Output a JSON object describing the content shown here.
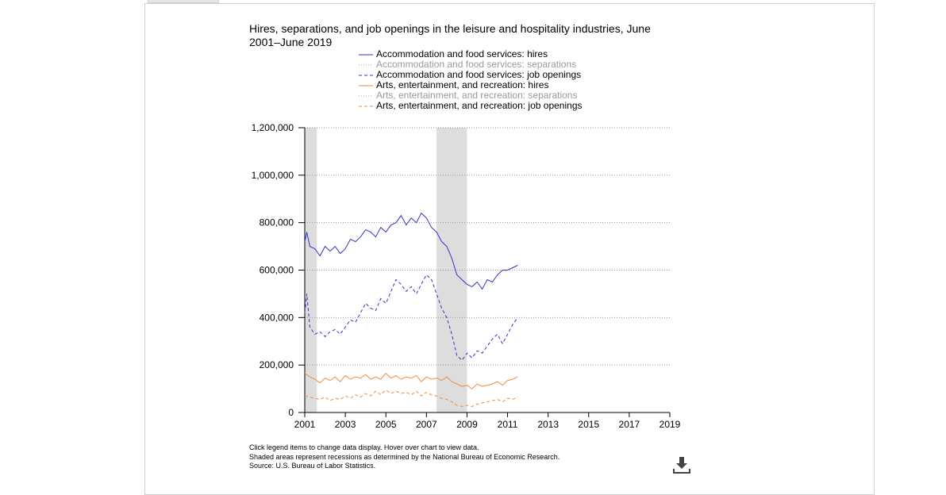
{
  "title": "Hires, separations, and job openings in the leisure and hospitality industries, June 2001–June 2019",
  "legend": [
    {
      "label": "Accommodation and food services: hires",
      "color": "#3333cc",
      "dash": "",
      "active": true
    },
    {
      "label": "Accommodation and food services: separations",
      "color": "#aaaaaa",
      "dash": "1,2",
      "active": false
    },
    {
      "label": "Accommodation and food services: job openings",
      "color": "#3333cc",
      "dash": "4,3",
      "active": true
    },
    {
      "label": "Arts, entertainment, and recreation: hires",
      "color": "#f28a40",
      "dash": "",
      "active": true
    },
    {
      "label": "Arts, entertainment, and recreation: separations",
      "color": "#aaaaaa",
      "dash": "1,2",
      "active": false
    },
    {
      "label": "Arts, entertainment, and recreation: job openings",
      "color": "#f28a40",
      "dash": "4,3",
      "active": true
    }
  ],
  "notes": [
    "Click legend items to change data display. Hover over chart to view data.",
    "Shaded areas represent recessions as determined by the National Bureau of Economic Research.",
    "Source: U.S. Bureau of Labor Statistics."
  ],
  "download_icon": "download-icon",
  "chart_data": {
    "type": "line",
    "x_unit": "year",
    "xlim": [
      2001,
      2019
    ],
    "ylim": [
      0,
      1200000
    ],
    "x_ticks": [
      2001,
      2003,
      2005,
      2007,
      2009,
      2011,
      2013,
      2015,
      2017,
      2019
    ],
    "x_tick_labels": [
      "2001",
      "2003",
      "2005",
      "2007",
      "2009",
      "2011",
      "2013",
      "2015",
      "2017",
      "2019"
    ],
    "y_ticks": [
      0,
      200000,
      400000,
      600000,
      800000,
      1000000,
      1200000
    ],
    "y_tick_labels": [
      "0",
      "200,000",
      "400,000",
      "600,000",
      "800,000",
      "1,000,000",
      "1,200,000"
    ],
    "grid": "horizontal-dotted",
    "recessions": [
      [
        2001.0,
        2001.6
      ],
      [
        2007.5,
        2009.0
      ]
    ],
    "series": [
      {
        "name": "Accommodation and food services: hires",
        "color": "#3333cc",
        "dash": "",
        "x": [
          2001.0,
          2001.1,
          2001.25,
          2001.5,
          2001.75,
          2002.0,
          2002.25,
          2002.5,
          2002.75,
          2003.0,
          2003.25,
          2003.5,
          2003.75,
          2004.0,
          2004.25,
          2004.5,
          2004.75,
          2005.0,
          2005.25,
          2005.5,
          2005.75,
          2006.0,
          2006.25,
          2006.5,
          2006.75,
          2007.0,
          2007.25,
          2007.5,
          2007.75,
          2008.0,
          2008.25,
          2008.5,
          2008.75,
          2009.0,
          2009.25,
          2009.5,
          2009.75,
          2010.0,
          2010.25,
          2010.5,
          2010.75,
          2011.0,
          2011.25,
          2011.5
        ],
        "y": [
          720000,
          760000,
          700000,
          690000,
          660000,
          700000,
          680000,
          700000,
          670000,
          690000,
          730000,
          720000,
          740000,
          770000,
          760000,
          740000,
          780000,
          760000,
          790000,
          800000,
          830000,
          790000,
          820000,
          800000,
          840000,
          820000,
          780000,
          760000,
          720000,
          700000,
          650000,
          580000,
          560000,
          540000,
          530000,
          550000,
          520000,
          560000,
          550000,
          580000,
          600000,
          600000,
          610000,
          620000
        ]
      },
      {
        "name": "Accommodation and food services: job openings",
        "color": "#3333cc",
        "dash": "4,3",
        "x": [
          2001.0,
          2001.1,
          2001.25,
          2001.5,
          2001.75,
          2002.0,
          2002.25,
          2002.5,
          2002.75,
          2003.0,
          2003.25,
          2003.5,
          2003.75,
          2004.0,
          2004.25,
          2004.5,
          2004.75,
          2005.0,
          2005.25,
          2005.5,
          2005.75,
          2006.0,
          2006.25,
          2006.5,
          2006.75,
          2007.0,
          2007.25,
          2007.5,
          2007.75,
          2008.0,
          2008.25,
          2008.5,
          2008.75,
          2009.0,
          2009.25,
          2009.5,
          2009.75,
          2010.0,
          2010.25,
          2010.5,
          2010.75,
          2011.0,
          2011.25,
          2011.5
        ],
        "y": [
          420000,
          500000,
          360000,
          330000,
          340000,
          320000,
          340000,
          350000,
          330000,
          360000,
          390000,
          380000,
          420000,
          460000,
          440000,
          430000,
          480000,
          460000,
          510000,
          560000,
          540000,
          510000,
          530000,
          500000,
          540000,
          580000,
          560000,
          500000,
          440000,
          400000,
          330000,
          240000,
          220000,
          250000,
          230000,
          260000,
          250000,
          280000,
          310000,
          330000,
          290000,
          330000,
          370000,
          400000
        ]
      },
      {
        "name": "Arts, entertainment, and recreation: hires",
        "color": "#f28a40",
        "dash": "",
        "x": [
          2001.0,
          2001.25,
          2001.5,
          2001.75,
          2002.0,
          2002.25,
          2002.5,
          2002.75,
          2003.0,
          2003.25,
          2003.5,
          2003.75,
          2004.0,
          2004.25,
          2004.5,
          2004.75,
          2005.0,
          2005.25,
          2005.5,
          2005.75,
          2006.0,
          2006.25,
          2006.5,
          2006.75,
          2007.0,
          2007.25,
          2007.5,
          2007.75,
          2008.0,
          2008.25,
          2008.5,
          2008.75,
          2009.0,
          2009.25,
          2009.5,
          2009.75,
          2010.0,
          2010.25,
          2010.5,
          2010.75,
          2011.0,
          2011.25,
          2011.5
        ],
        "y": [
          165000,
          150000,
          140000,
          125000,
          145000,
          135000,
          150000,
          130000,
          155000,
          140000,
          150000,
          145000,
          160000,
          140000,
          150000,
          140000,
          165000,
          145000,
          155000,
          140000,
          150000,
          145000,
          155000,
          130000,
          150000,
          140000,
          145000,
          135000,
          150000,
          130000,
          120000,
          110000,
          115000,
          100000,
          120000,
          110000,
          115000,
          120000,
          130000,
          115000,
          135000,
          140000,
          150000
        ]
      },
      {
        "name": "Arts, entertainment, and recreation: job openings",
        "color": "#f28a40",
        "dash": "4,3",
        "x": [
          2001.0,
          2001.25,
          2001.5,
          2001.75,
          2002.0,
          2002.25,
          2002.5,
          2002.75,
          2003.0,
          2003.25,
          2003.5,
          2003.75,
          2004.0,
          2004.25,
          2004.5,
          2004.75,
          2005.0,
          2005.25,
          2005.5,
          2005.75,
          2006.0,
          2006.25,
          2006.5,
          2006.75,
          2007.0,
          2007.25,
          2007.5,
          2007.75,
          2008.0,
          2008.25,
          2008.5,
          2008.75,
          2009.0,
          2009.25,
          2009.5,
          2009.75,
          2010.0,
          2010.25,
          2010.5,
          2010.75,
          2011.0,
          2011.25,
          2011.5
        ],
        "y": [
          70000,
          65000,
          60000,
          55000,
          65000,
          50000,
          60000,
          55000,
          70000,
          60000,
          75000,
          65000,
          80000,
          70000,
          90000,
          75000,
          95000,
          80000,
          90000,
          80000,
          85000,
          75000,
          90000,
          70000,
          85000,
          75000,
          70000,
          60000,
          55000,
          45000,
          30000,
          25000,
          30000,
          25000,
          35000,
          40000,
          45000,
          50000,
          55000,
          45000,
          60000,
          55000,
          65000
        ]
      }
    ]
  }
}
